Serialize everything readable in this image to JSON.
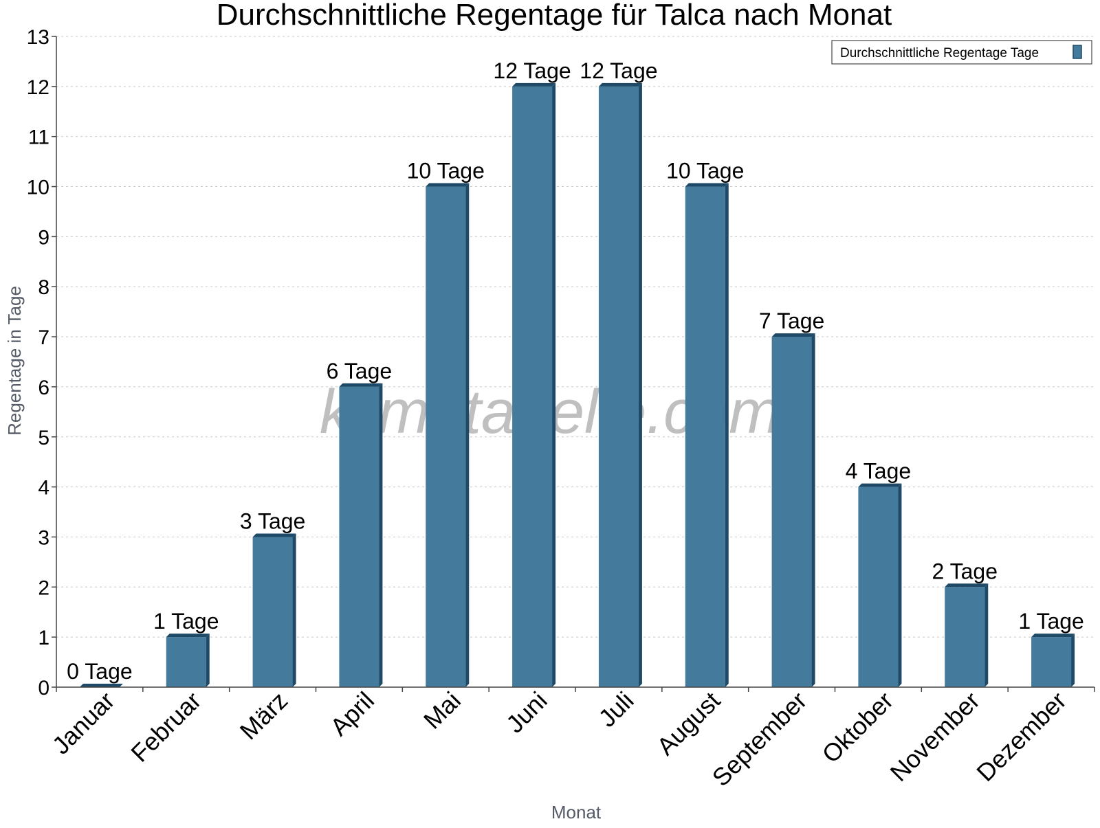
{
  "watermark": "klimatabelle.com",
  "chart_data": {
    "type": "bar",
    "title": "Durchschnittliche Regentage für Talca nach Monat",
    "xlabel": "Monat",
    "ylabel": "Regentage in Tage",
    "ylim": [
      0,
      13
    ],
    "yticks": [
      "0",
      "1",
      "2",
      "3",
      "4",
      "5",
      "6",
      "7",
      "8",
      "9",
      "10",
      "11",
      "12",
      "13"
    ],
    "grid": true,
    "legend_position": "top-right",
    "categories": [
      "Januar",
      "Februar",
      "März",
      "April",
      "Mai",
      "Juni",
      "Juli",
      "August",
      "September",
      "Oktober",
      "November",
      "Dezember"
    ],
    "series": [
      {
        "name": "Durchschnittliche Regentage Tage",
        "color": "#447a9c",
        "side_color": "#1e4a68",
        "values": [
          0,
          1,
          3,
          6,
          10,
          12,
          12,
          10,
          7,
          4,
          2,
          1
        ],
        "data_labels": [
          "0 Tage",
          "1 Tage",
          "3 Tage",
          "6 Tage",
          "10 Tage",
          "12 Tage",
          "12 Tage",
          "10 Tage",
          "7 Tage",
          "4 Tage",
          "2 Tage",
          "1 Tage"
        ]
      }
    ]
  }
}
